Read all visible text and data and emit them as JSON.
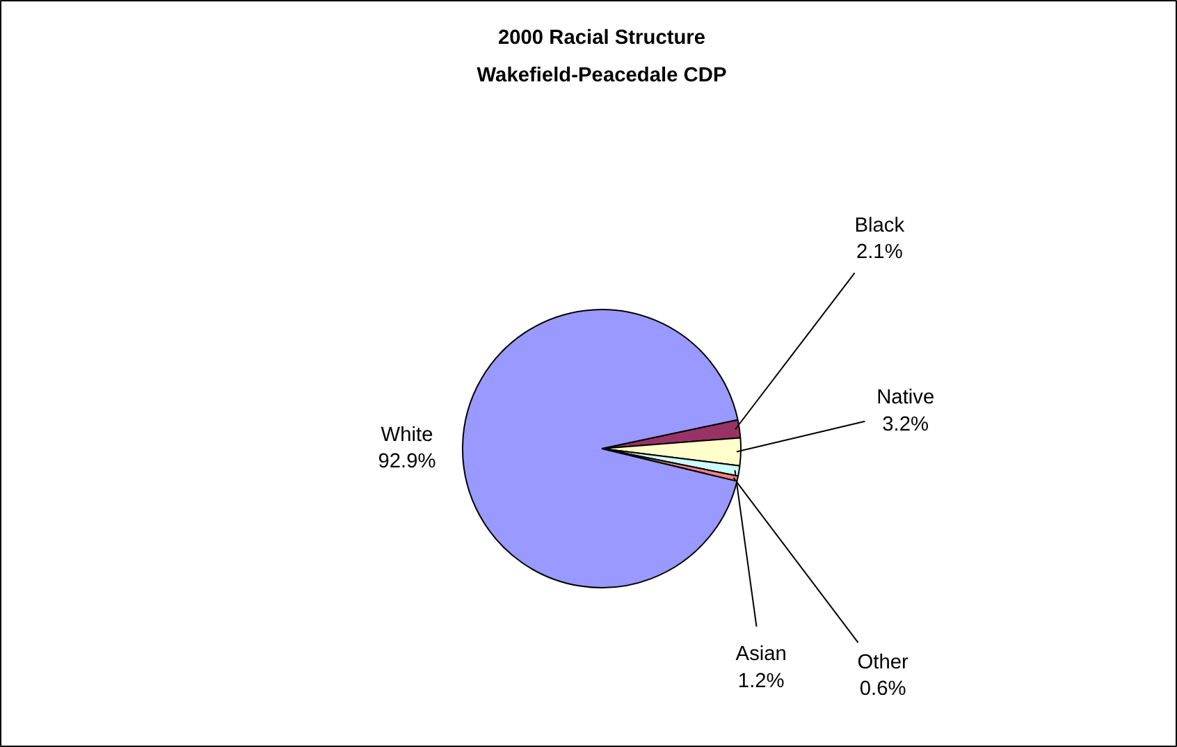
{
  "chart_data": {
    "type": "pie",
    "title": "2000 Racial Structure\nWakefield-Peacedale CDP",
    "categories": [
      "Black",
      "Native",
      "Asian",
      "Other",
      "White"
    ],
    "values": [
      2.1,
      3.2,
      1.2,
      0.6,
      92.9
    ],
    "colors": [
      "#993366",
      "#ffffcc",
      "#ccffff",
      "#ff8080",
      "#9999ff"
    ],
    "value_labels": [
      "2.1%",
      "3.2%",
      "1.2%",
      "0.6%",
      "92.9%"
    ],
    "legend": false
  }
}
